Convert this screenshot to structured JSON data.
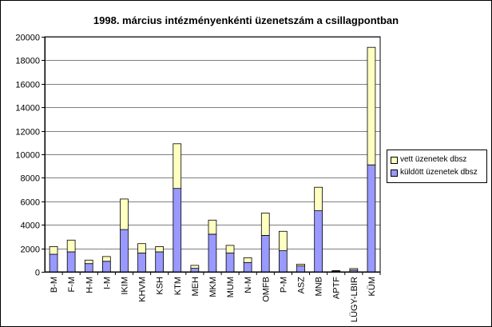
{
  "chart_data": {
    "type": "bar",
    "stacked": true,
    "title": "1998. március intézményenkénti üzenetszám a csillagpontban",
    "xlabel": "",
    "ylabel": "",
    "ylim": [
      0,
      20000
    ],
    "yticks": [
      0,
      2000,
      4000,
      6000,
      8000,
      10000,
      12000,
      14000,
      16000,
      18000,
      20000
    ],
    "ytick_labels": [
      "0",
      "2000",
      "4000",
      "6000",
      "8000",
      "10000",
      "12000",
      "14000",
      "16000",
      "18000",
      "20000"
    ],
    "categories": [
      "B-M",
      "F-M",
      "H-M",
      "I-M",
      "IKIM",
      "KHVM",
      "KSH",
      "KTM",
      "MEH",
      "MKM",
      "MUM",
      "N-M",
      "OMFB",
      "P-M",
      "ASZ",
      "MNB",
      "APTF",
      "LÜGY-LBIR",
      "KÜM"
    ],
    "series": [
      {
        "name": "küldött üzenetek dbsz",
        "color": "#9999ff",
        "values": [
          1500,
          1700,
          700,
          900,
          3600,
          1600,
          1700,
          7100,
          300,
          3200,
          1600,
          800,
          3100,
          1800,
          500,
          5200,
          50,
          150,
          9100
        ]
      },
      {
        "name": "vett üzenetek dbsz",
        "color": "#ffffc0",
        "values": [
          650,
          1000,
          300,
          400,
          2600,
          800,
          450,
          3800,
          250,
          1200,
          650,
          400,
          1900,
          1650,
          150,
          2000,
          50,
          130,
          10000
        ]
      }
    ],
    "legend_position": "right",
    "grid": true
  }
}
